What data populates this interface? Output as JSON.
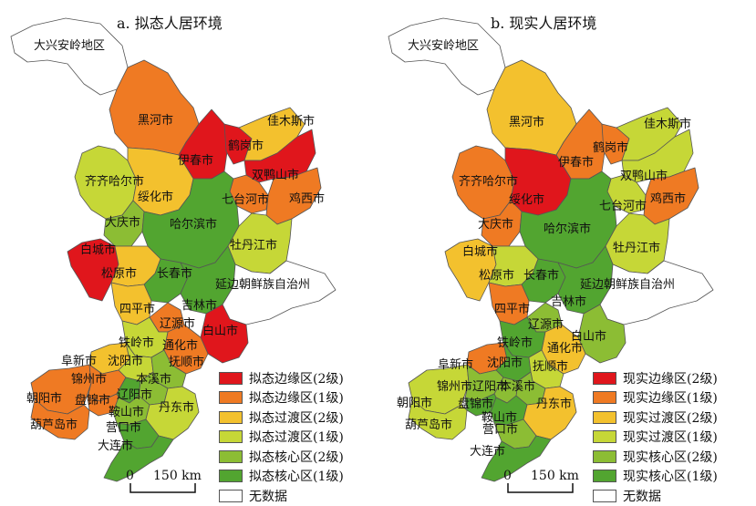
{
  "colors": {
    "border_red": "#e0161c",
    "border_orange": "#ef7a23",
    "transition_yellow": "#f3c12e",
    "transition_yellowgreen": "#c6d737",
    "core_lightgreen": "#8cbd34",
    "core_green": "#52a530",
    "nodata": "#ffffff"
  },
  "panels": [
    {
      "title": "a. 拟态人居环境",
      "legend": [
        "拟态边缘区(2级)",
        "拟态边缘区(1级)",
        "拟态过渡区(2级)",
        "拟态过渡区(1级)",
        "拟态核心区(2级)",
        "拟态核心区(1级)",
        "无数据"
      ],
      "scale": {
        "zero": "0",
        "distance": "150 km"
      }
    },
    {
      "title": "b. 现实人居环境",
      "legend": [
        "现实边缘区(2级)",
        "现实边缘区(1级)",
        "现实过渡区(2级)",
        "现实过渡区(1级)",
        "现实核心区(2级)",
        "现实核心区(1级)",
        "无数据"
      ],
      "scale": {
        "zero": "0",
        "distance": "150 km"
      }
    }
  ],
  "cities": {
    "daxinganling": "大兴安岭地区",
    "heihe": "黑河市",
    "jiamusi": "佳木斯市",
    "hegang": "鹤岗市",
    "yichun": "伊春市",
    "shuangyashan": "双鸭山市",
    "qiqihar": "齐齐哈尔市",
    "suihua": "绥化市",
    "qitaihe": "七台河市",
    "jixi": "鸡西市",
    "daqing": "大庆市",
    "harbin": "哈尔滨市",
    "mudanjiang": "牡丹江市",
    "baicheng": "白城市",
    "songyuan": "松原市",
    "changchun": "长春市",
    "yanbian": "延边朝鲜族自治州",
    "jilin": "吉林市",
    "siping": "四平市",
    "liaoyuan": "辽源市",
    "baishan": "白山市",
    "tieling": "铁岭市",
    "tonghua": "通化市",
    "fuxin": "阜新市",
    "shenyang": "沈阳市",
    "fushun": "抚顺市",
    "jinzhou": "锦州市",
    "benxi": "本溪市",
    "chaoyang": "朝阳市",
    "panjin": "盘锦市",
    "liaoyang": "辽阳市",
    "dandong": "丹东市",
    "anshan": "鞍山市",
    "huludao": "葫芦岛市",
    "yingkou": "营口市",
    "dalian": "大连市"
  }
}
